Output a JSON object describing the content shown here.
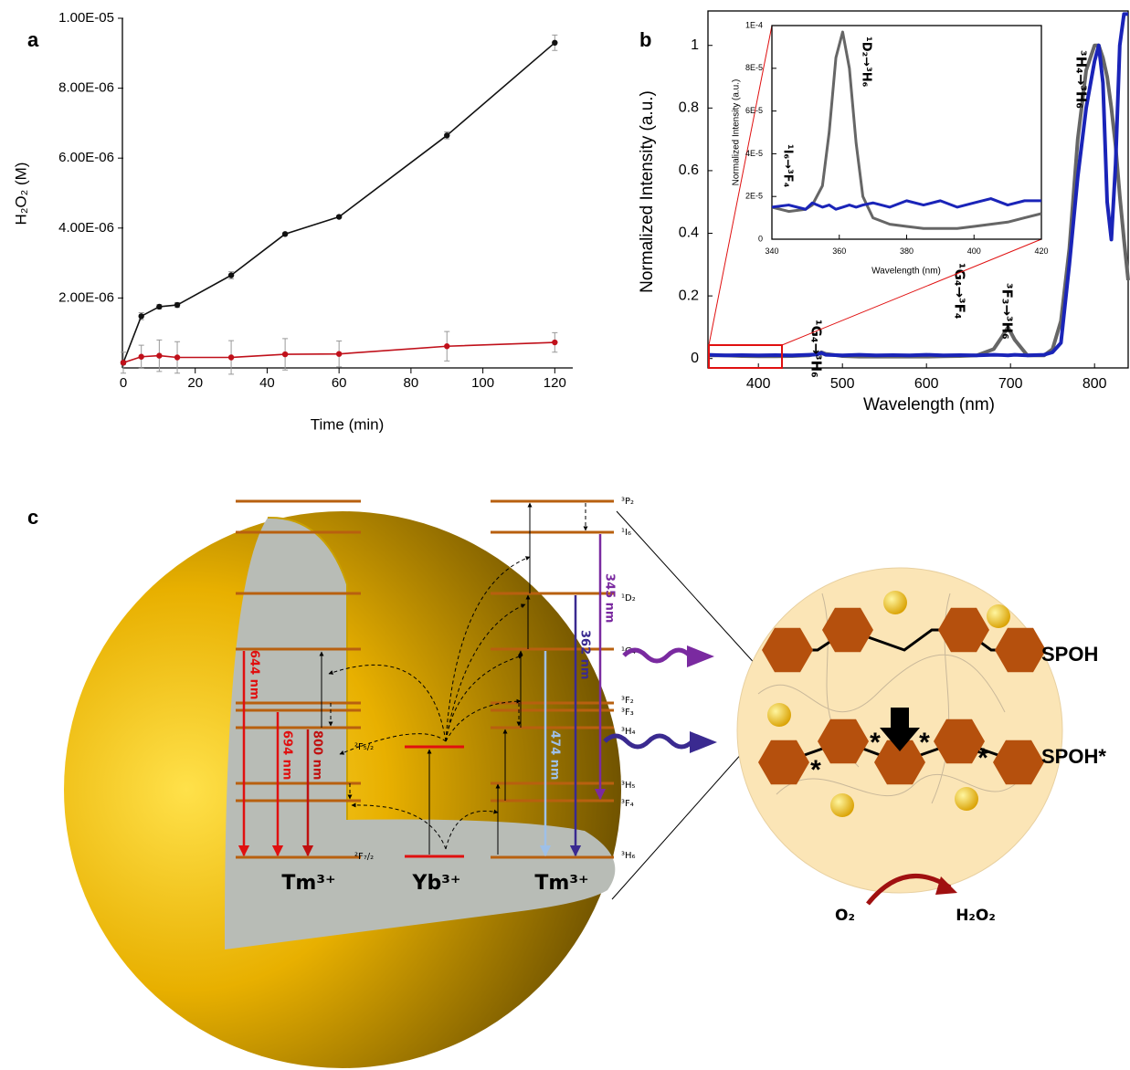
{
  "chart_data": [
    {
      "type": "line",
      "panel_label": "a",
      "x_label": "Time (min)",
      "y_label": "H₂O₂ (M)",
      "x": [
        0,
        5,
        10,
        15,
        30,
        45,
        60,
        90,
        120
      ],
      "xlim": [
        0,
        125
      ],
      "xticks": [
        0,
        20,
        40,
        60,
        80,
        100,
        120
      ],
      "ylim": [
        0,
        1e-05
      ],
      "yticks": [
        {
          "value": 2e-06,
          "label": "2.00E-06"
        },
        {
          "value": 4e-06,
          "label": "4.00E-06"
        },
        {
          "value": 6e-06,
          "label": "6.00E-06"
        },
        {
          "value": 8e-06,
          "label": "8.00E-06"
        },
        {
          "value": 1e-05,
          "label": "1.00E-05"
        }
      ],
      "markers": true,
      "error_color": "#999999",
      "series": [
        {
          "color": "#111111",
          "values": [
            1.5e-07,
            1.48e-06,
            1.75e-06,
            1.8e-06,
            2.65e-06,
            3.83e-06,
            4.32e-06,
            6.65e-06,
            9.3e-06
          ],
          "errors": [
            5e-08,
            1e-07,
            6e-08,
            7e-08,
            1e-07,
            3e-08,
            3e-08,
            1e-07,
            2.2e-07
          ]
        },
        {
          "color": "#c0101a",
          "values": [
            1.5e-07,
            3.2e-07,
            3.5e-07,
            3e-07,
            3e-07,
            3.9e-07,
            4e-07,
            6.2e-07,
            7.3e-07
          ],
          "errors": [
            3e-07,
            3.3e-07,
            4.5e-07,
            4.5e-07,
            4.8e-07,
            4.5e-07,
            3.7e-07,
            4.2e-07,
            2.8e-07
          ]
        }
      ]
    },
    {
      "type": "line",
      "panel_label": "b",
      "x_label": "Wavelength (nm)",
      "y_label": "Normalized Intensity (a.u.)",
      "x": [
        340,
        360,
        380,
        400,
        420,
        440,
        460,
        470,
        475,
        480,
        500,
        520,
        540,
        560,
        580,
        600,
        620,
        640,
        660,
        680,
        690,
        697,
        705,
        720,
        740,
        750,
        760,
        770,
        780,
        790,
        800,
        805,
        810,
        815,
        820,
        825,
        830,
        835,
        840
      ],
      "xlim": [
        340,
        840
      ],
      "xticks": [
        400,
        500,
        600,
        700,
        800
      ],
      "ylim": [
        -0.03,
        1.11
      ],
      "yticks": [
        0,
        0.2,
        0.4,
        0.6,
        0.8,
        1
      ],
      "markers": false,
      "annotations": [
        "¹G₄→³H₆",
        "¹G₄→³F₄",
        "³F₃→³H₆",
        "³H₄→³H₆"
      ],
      "series": [
        {
          "color": "#666666",
          "values": [
            0.01,
            0.01,
            0.008,
            0.007,
            0.007,
            0.008,
            0.01,
            0.015,
            0.02,
            0.015,
            0.008,
            0.006,
            0.006,
            0.006,
            0.006,
            0.006,
            0.007,
            0.008,
            0.01,
            0.03,
            0.07,
            0.1,
            0.06,
            0.01,
            0.01,
            0.03,
            0.12,
            0.35,
            0.7,
            0.92,
            1.0,
            1.0,
            0.96,
            0.9,
            0.8,
            0.68,
            0.52,
            0.38,
            0.25
          ]
        },
        {
          "color": "#1a24b8",
          "values": [
            0.012,
            0.01,
            0.011,
            0.01,
            0.011,
            0.01,
            0.012,
            0.013,
            0.018,
            0.012,
            0.01,
            0.012,
            0.01,
            0.011,
            0.01,
            0.012,
            0.01,
            0.011,
            0.01,
            0.012,
            0.011,
            0.01,
            0.012,
            0.01,
            0.012,
            0.02,
            0.05,
            0.3,
            0.58,
            0.8,
            0.95,
            1.0,
            0.88,
            0.5,
            0.38,
            0.62,
            1.0,
            1.1,
            1.1
          ]
        }
      ]
    },
    {
      "type": "line",
      "x_label": "Wavelength (nm)",
      "y_label": "Normalized Intensity (a.u.)",
      "x": [
        340,
        345,
        350,
        352,
        355,
        357,
        359,
        361,
        363,
        365,
        367,
        370,
        375,
        380,
        385,
        390,
        395,
        400,
        405,
        410,
        415,
        420
      ],
      "xlim": [
        340,
        420
      ],
      "xticks": [
        340,
        360,
        380,
        400,
        420
      ],
      "ylim": [
        0,
        0.0001
      ],
      "yticks": [
        0,
        {
          "value": 2e-05,
          "label": "2E-5"
        },
        {
          "value": 4e-05,
          "label": "4E-5"
        },
        {
          "value": 6e-05,
          "label": "6E-5"
        },
        {
          "value": 8e-05,
          "label": "8E-5"
        },
        {
          "value": 0.0001,
          "label": "1E-4"
        }
      ],
      "markers": false,
      "annotations": [
        "¹D₂→³H₆",
        "¹I₆→³F₄"
      ],
      "series": [
        {
          "color": "#666666",
          "values": [
            1.5e-05,
            1.3e-05,
            1.4e-05,
            1.6e-05,
            2.5e-05,
            5e-05,
            8.5e-05,
            9.7e-05,
            8e-05,
            4.5e-05,
            2e-05,
            1e-05,
            7e-06,
            6e-06,
            5e-06,
            5e-06,
            5e-06,
            6e-06,
            7e-06,
            8e-06,
            1e-05,
            1.2e-05
          ]
        },
        {
          "color": "#1a24b8",
          "values": [
            1.5e-05,
            1.6e-05,
            1.4e-05,
            1.7e-05,
            1.5e-05,
            1.6e-05,
            1.4e-05,
            1.5e-05,
            1.6e-05,
            1.5e-05,
            1.6e-05,
            1.7e-05,
            1.5e-05,
            1.8e-05,
            1.6e-05,
            1.8e-05,
            1.5e-05,
            1.7e-05,
            1.9e-05,
            1.6e-05,
            1.8e-05,
            1.8e-05
          ]
        }
      ]
    }
  ],
  "diagram": {
    "panel_label": "c",
    "ions": [
      "Tm³⁺",
      "Yb³⁺",
      "Tm³⁺"
    ],
    "tm_levels": [
      "³P₂",
      "¹I₆",
      "¹D₂",
      "¹G₄",
      "³F₂",
      "³F₃",
      "³H₄",
      "³H₅",
      "³F₄",
      "³H₆"
    ],
    "yb_levels": [
      "²F₅/₂",
      "²F₇/₂"
    ],
    "emissions": [
      "644 nm",
      "694 nm",
      "800 nm",
      "474 nm",
      "362 nm",
      "345 nm"
    ],
    "molecules": [
      "SPOH",
      "SPOH*"
    ],
    "excited_mark": "*",
    "reaction": [
      "O₂",
      "H₂O₂"
    ]
  }
}
